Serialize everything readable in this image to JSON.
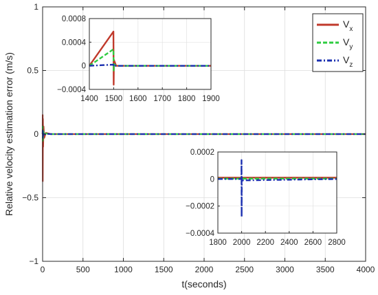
{
  "chart_data": {
    "type": "line",
    "title": "",
    "xlabel": "t(seconds)",
    "ylabel": "Relative velocity estimation error (m/s)",
    "xlim": [
      0,
      4000
    ],
    "ylim": [
      -1,
      1
    ],
    "xticks": [
      0,
      500,
      1000,
      1500,
      2000,
      2500,
      3000,
      3500,
      4000
    ],
    "xtick_labels": [
      "0",
      "500",
      "1000",
      "1500",
      "2000",
      "2500",
      "3000",
      "3500",
      "4000"
    ],
    "yticks": [
      -1,
      -0.5,
      0,
      0.5,
      1
    ],
    "ytick_labels": [
      "−1",
      "−0.5",
      "0",
      "0.5",
      "1"
    ],
    "grid": true,
    "legend_position": "top-right",
    "series": [
      {
        "name": "V",
        "subscript": "x",
        "color": "#c0392b",
        "style": "solid",
        "x": [
          0,
          1,
          2,
          4,
          7,
          12,
          20,
          40,
          100,
          500,
          1000,
          2000,
          3000,
          4000
        ],
        "y": [
          0,
          0.15,
          -0.37,
          0.12,
          -0.1,
          0.06,
          -0.03,
          0.01,
          0,
          0,
          0,
          0,
          0,
          0
        ]
      },
      {
        "name": "V",
        "subscript": "y",
        "color": "#2ecc40",
        "style": "dashed",
        "x": [
          0,
          1,
          2,
          4,
          7,
          12,
          20,
          40,
          100,
          500,
          1000,
          2000,
          3000,
          4000
        ],
        "y": [
          0,
          0.06,
          -0.06,
          0.04,
          -0.03,
          0.02,
          -0.01,
          0.005,
          0,
          0,
          0,
          0,
          0,
          0
        ]
      },
      {
        "name": "V",
        "subscript": "z",
        "color": "#1a2fb0",
        "style": "dashdot",
        "x": [
          0,
          1,
          2,
          4,
          7,
          12,
          20,
          40,
          100,
          500,
          1000,
          2000,
          3000,
          4000
        ],
        "y": [
          0,
          0.03,
          -0.03,
          0.02,
          -0.015,
          0.01,
          -0.005,
          0.002,
          0,
          0,
          0,
          0,
          0,
          0
        ]
      }
    ],
    "insets": [
      {
        "xlim": [
          1400,
          1900
        ],
        "ylim": [
          -0.0004,
          0.0008
        ],
        "xticks": [
          1400,
          1500,
          1600,
          1700,
          1800,
          1900
        ],
        "xtick_labels": [
          "1400",
          "1500",
          "1600",
          "1700",
          "1800",
          "1900"
        ],
        "yticks": [
          -0.0004,
          0,
          0.0004,
          0.0008
        ],
        "ytick_labels": [
          "−0.0004",
          "0",
          "0.0004",
          "0.0008"
        ],
        "series": [
          {
            "name": "V",
            "subscript": "x",
            "x": [
              1400,
              1499,
              1500,
              1501,
              1510,
              1900
            ],
            "y": [
              0,
              0.00058,
              -0.00032,
              0.0001,
              0,
              0
            ]
          },
          {
            "name": "V",
            "subscript": "y",
            "x": [
              1400,
              1499,
              1500,
              1501,
              1510,
              1900
            ],
            "y": [
              0,
              0.00028,
              -8e-05,
              3e-05,
              0,
              0
            ]
          },
          {
            "name": "V",
            "subscript": "z",
            "x": [
              1400,
              1499,
              1500,
              1501,
              1510,
              1900
            ],
            "y": [
              0,
              2e-05,
              -1e-05,
              0,
              0,
              0
            ]
          }
        ]
      },
      {
        "xlim": [
          1800,
          2800
        ],
        "ylim": [
          -0.0004,
          0.0002
        ],
        "xticks": [
          1800,
          2000,
          2200,
          2400,
          2600,
          2800
        ],
        "xtick_labels": [
          "1800",
          "2000",
          "2200",
          "2400",
          "2600",
          "2800"
        ],
        "yticks": [
          -0.0004,
          -0.0002,
          0,
          0.0002
        ],
        "ytick_labels": [
          "−0.0004",
          "−0.0002",
          "0",
          "0.0002"
        ],
        "series": [
          {
            "name": "V",
            "subscript": "x",
            "x": [
              1800,
              2800
            ],
            "y": [
              1e-05,
              1e-05
            ]
          },
          {
            "name": "V",
            "subscript": "y",
            "x": [
              1800,
              2800
            ],
            "y": [
              3e-06,
              3e-06
            ]
          },
          {
            "name": "V",
            "subscript": "z",
            "x": [
              1800,
              1998,
              1999,
              2000,
              2001,
              2010,
              2800
            ],
            "y": [
              0,
              0,
              0.00014,
              -0.00028,
              1e-05,
              -1e-05,
              0
            ]
          }
        ]
      }
    ]
  }
}
